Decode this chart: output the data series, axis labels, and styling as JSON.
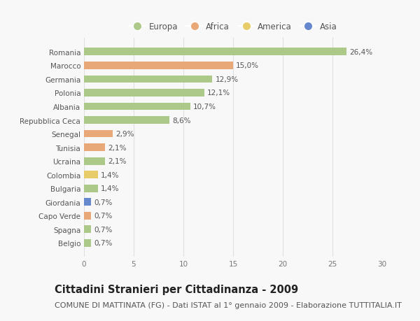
{
  "categories": [
    "Romania",
    "Marocco",
    "Germania",
    "Polonia",
    "Albania",
    "Repubblica Ceca",
    "Senegal",
    "Tunisia",
    "Ucraina",
    "Colombia",
    "Bulgaria",
    "Giordania",
    "Capo Verde",
    "Spagna",
    "Belgio"
  ],
  "values": [
    26.4,
    15.0,
    12.9,
    12.1,
    10.7,
    8.6,
    2.9,
    2.1,
    2.1,
    1.4,
    1.4,
    0.7,
    0.7,
    0.7,
    0.7
  ],
  "labels": [
    "26,4%",
    "15,0%",
    "12,9%",
    "12,1%",
    "10,7%",
    "8,6%",
    "2,9%",
    "2,1%",
    "2,1%",
    "1,4%",
    "1,4%",
    "0,7%",
    "0,7%",
    "0,7%",
    "0,7%"
  ],
  "continents": [
    "Europa",
    "Africa",
    "Europa",
    "Europa",
    "Europa",
    "Europa",
    "Africa",
    "Africa",
    "Europa",
    "America",
    "Europa",
    "Asia",
    "Africa",
    "Europa",
    "Europa"
  ],
  "continent_colors": {
    "Europa": "#adc98a",
    "Africa": "#e8a878",
    "America": "#e8cc6a",
    "Asia": "#6688cc"
  },
  "legend_order": [
    "Europa",
    "Africa",
    "America",
    "Asia"
  ],
  "title": "Cittadini Stranieri per Cittadinanza - 2009",
  "subtitle": "COMUNE DI MATTINATA (FG) - Dati ISTAT al 1° gennaio 2009 - Elaborazione TUTTITALIA.IT",
  "xlim": [
    0,
    30
  ],
  "xticks": [
    0,
    5,
    10,
    15,
    20,
    25,
    30
  ],
  "background_color": "#f8f8f8",
  "grid_color": "#e0e0e0",
  "bar_height": 0.55,
  "title_fontsize": 10.5,
  "subtitle_fontsize": 8,
  "label_fontsize": 7.5,
  "tick_fontsize": 7.5,
  "legend_fontsize": 8.5
}
